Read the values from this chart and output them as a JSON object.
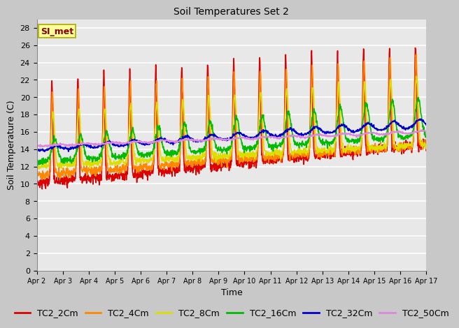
{
  "title": "Soil Temperatures Set 2",
  "xlabel": "Time",
  "ylabel": "Soil Temperature (C)",
  "ylim": [
    0,
    29
  ],
  "yticks": [
    0,
    2,
    4,
    6,
    8,
    10,
    12,
    14,
    16,
    18,
    20,
    22,
    24,
    26,
    28
  ],
  "fig_bg_color": "#c8c8c8",
  "plot_bg_color": "#e8e8e8",
  "annotation_text": "SI_met",
  "annotation_bg": "#ffff99",
  "annotation_border": "#aaaa00",
  "annotation_text_color": "#880000",
  "series": [
    {
      "label": "TC2_2Cm",
      "color": "#dd0000",
      "lw": 1.2
    },
    {
      "label": "TC2_4Cm",
      "color": "#ff8800",
      "lw": 1.2
    },
    {
      "label": "TC2_8Cm",
      "color": "#dddd00",
      "lw": 1.2
    },
    {
      "label": "TC2_16Cm",
      "color": "#00bb00",
      "lw": 1.2
    },
    {
      "label": "TC2_32Cm",
      "color": "#0000cc",
      "lw": 1.2
    },
    {
      "label": "TC2_50Cm",
      "color": "#dd88dd",
      "lw": 1.2
    }
  ],
  "xtick_labels": [
    "Apr 2",
    "Apr 3",
    "Apr 4",
    "Apr 5",
    "Apr 6",
    "Apr 7",
    "Apr 8",
    "Apr 9",
    "Apr 10",
    "Apr 11",
    "Apr 12",
    "Apr 13",
    "Apr 14",
    "Apr 15",
    "Apr 16",
    "Apr 17"
  ],
  "legend_ncol": 6,
  "legend_fontsize": 9
}
